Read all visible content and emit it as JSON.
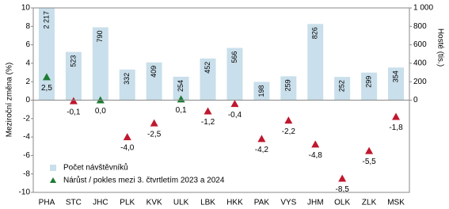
{
  "chart_data": {
    "type": "bar-line",
    "y_label": "Meziroční změna (%)",
    "y2_label": "Hosté (tis.)",
    "categories": [
      "PHA",
      "STC",
      "JHC",
      "PLK",
      "KVK",
      "ULK",
      "LBK",
      "HKK",
      "PAK",
      "VYS",
      "JHM",
      "OLK",
      "ZLK",
      "MSK"
    ],
    "series": [
      {
        "name": "Počet návštěvníků",
        "type": "bar",
        "axis": "y2",
        "color": "#c9dfeb",
        "values": [
          2217,
          523,
          790,
          332,
          409,
          254,
          452,
          566,
          198,
          259,
          826,
          252,
          299,
          354
        ],
        "value_labels": [
          "2 217",
          "523",
          "790",
          "332",
          "409",
          "254",
          "452",
          "566",
          "198",
          "259",
          "826",
          "252",
          "299",
          "354"
        ]
      },
      {
        "name": "Nárůst / pokles mezi 3. čtvrtletím 2023 a 2024",
        "type": "marker",
        "axis": "y",
        "color": "#c0172e",
        "colors": [
          "#1e7b34",
          "#c0172e",
          "#1e7b34",
          "#c0172e",
          "#c0172e",
          "#1e7b34",
          "#c0172e",
          "#c0172e",
          "#c0172e",
          "#c0172e",
          "#c0172e",
          "#c0172e",
          "#c0172e",
          "#c0172e"
        ],
        "values": [
          2.5,
          -0.1,
          0.0,
          -4.0,
          -2.5,
          0.1,
          -1.2,
          -0.4,
          -4.2,
          -2.2,
          -4.8,
          -8.5,
          -5.5,
          -1.8
        ],
        "value_labels": [
          "2,5",
          "-0,1",
          "0,0",
          "-4,0",
          "-2,5",
          "0,1",
          "-1,2",
          "-0,4",
          "-4,2",
          "-2,2",
          "-4,8",
          "-8,5",
          "-5,5",
          "-1,8"
        ]
      }
    ],
    "ylim": [
      -10,
      10
    ],
    "yticks": [
      -10,
      -8,
      -6,
      -4,
      -2,
      0,
      2,
      4,
      6,
      8,
      10
    ],
    "y2lim": [
      -1000,
      1000
    ],
    "y2ticks": [
      0,
      200,
      400,
      600,
      800,
      {
        "value": 1000,
        "label": "1 000"
      }
    ]
  }
}
